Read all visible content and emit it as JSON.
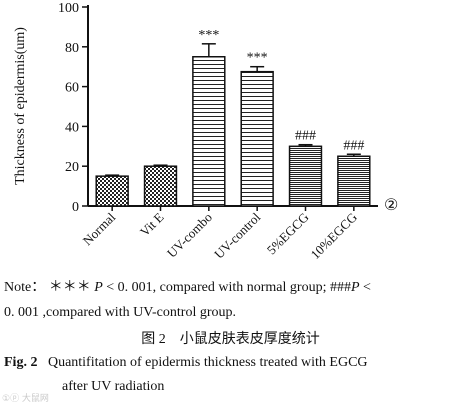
{
  "chart_data": {
    "type": "bar",
    "ylabel": "Thickness of epidermis(um)",
    "ylim": [
      0,
      100
    ],
    "yticks": [
      0,
      20,
      40,
      60,
      80,
      100
    ],
    "categories": [
      "Normal",
      "Vit E",
      "UV-combo",
      "UV-control",
      "5%EGCG",
      "10%EGCG"
    ],
    "values": [
      15,
      20,
      75,
      67.5,
      30,
      25
    ],
    "errors": [
      0.5,
      0.5,
      6.5,
      2.5,
      0.8,
      1.0
    ],
    "annotations": [
      "",
      "",
      "***",
      "***",
      "###",
      "###"
    ],
    "patterns": [
      "checker",
      "checker",
      "hlines",
      "hlines",
      "dense-hlines",
      "dense-hlines"
    ],
    "panel_label": "②"
  },
  "caption": {
    "note_prefix": "Note：",
    "note_sig1": "＊＊＊",
    "note_p1": "P",
    "note_mid1": " < 0. 001, compared with normal group; ###",
    "note_p2": "P",
    "note_end1": " <",
    "note_line2": "0. 001 ,compared with UV-control group.",
    "title_cn": "图 2　小鼠皮肤表皮厚度统计",
    "fig_label": "Fig. 2",
    "fig_title_1": "Quantifitation of epidermis thickness treated with EGCG",
    "fig_title_2": "after UV radiation"
  },
  "watermark": "①ⓟ 大鼠网"
}
